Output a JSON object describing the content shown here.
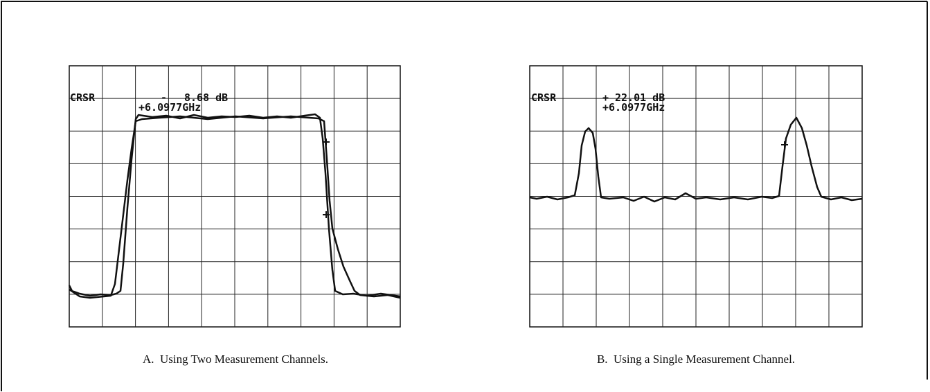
{
  "panels": [
    {
      "cursor": {
        "label": "CRSR",
        "sign": "-",
        "level": "8.68 dB",
        "frequency": "+6.0977GHz"
      },
      "caption": "A.  Using Two Measurement Channels."
    },
    {
      "cursor": {
        "label": "CRSR",
        "sign": "+",
        "level": "22.01 dB",
        "frequency": "+6.0977GHz"
      },
      "caption": "B.  Using a Single Measurement Channel."
    }
  ]
}
